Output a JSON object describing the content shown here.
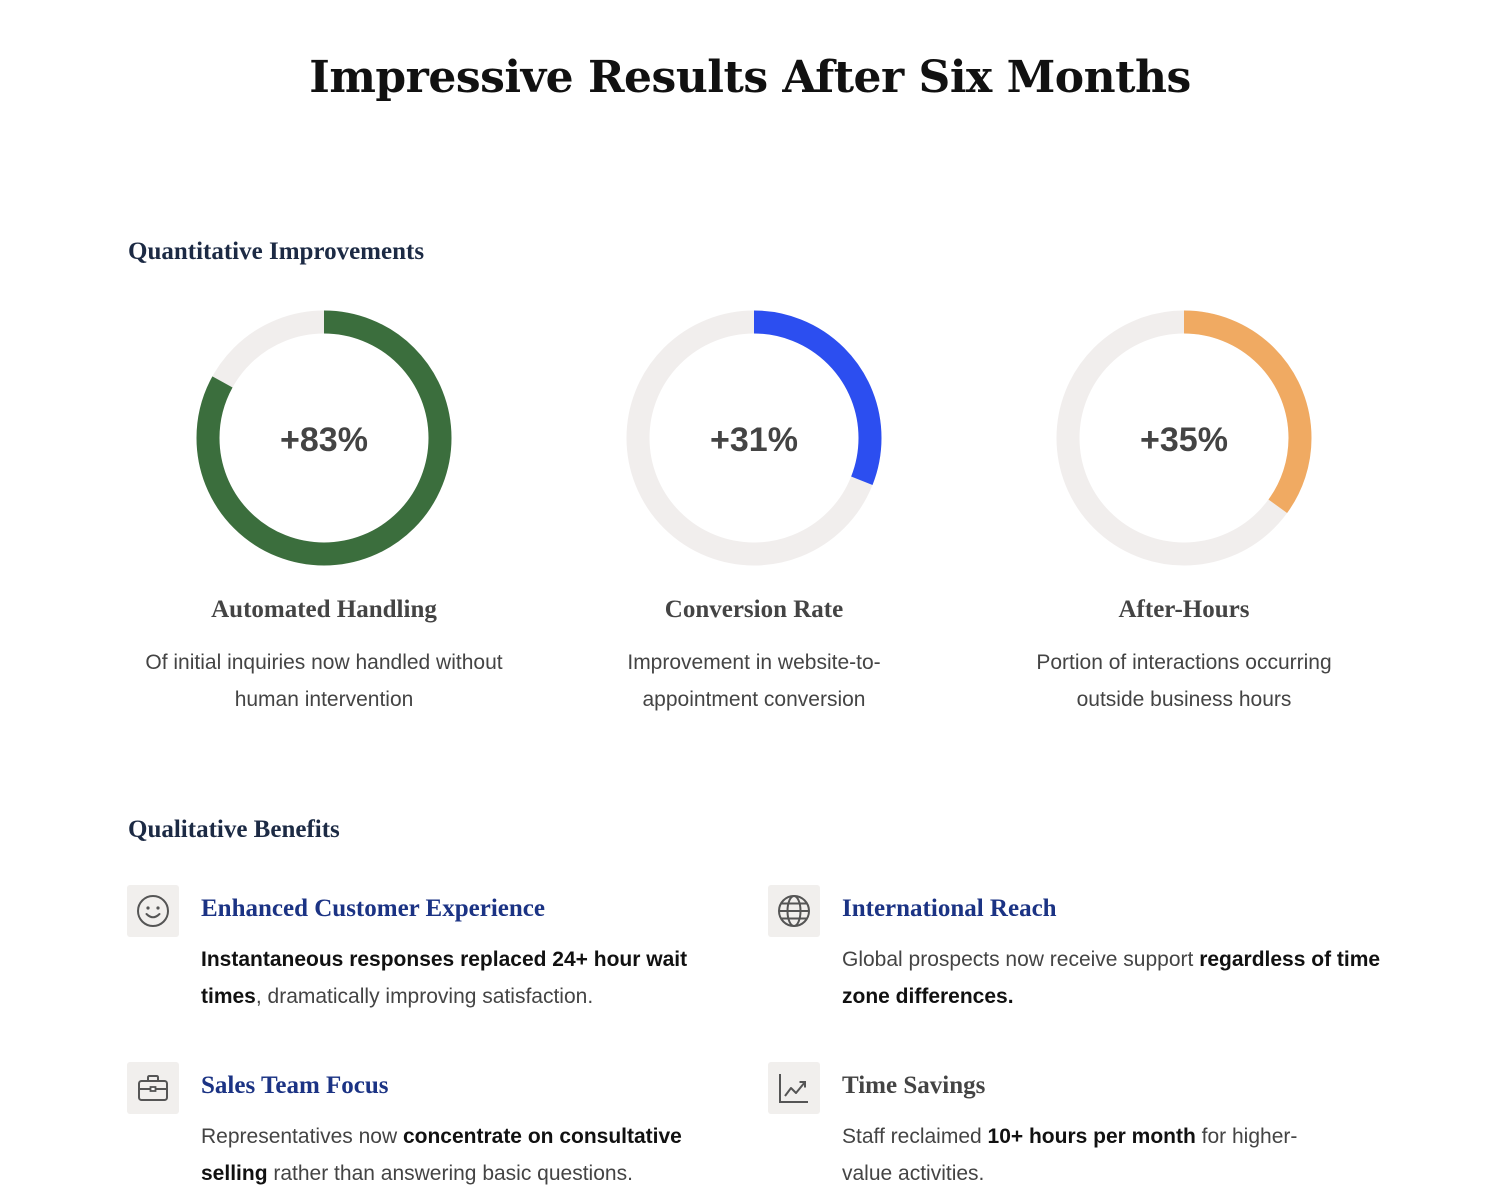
{
  "title": "Impressive Results After Six Months",
  "quantitative": {
    "heading": "Quantitative Improvements",
    "track_color": "#f1eeed"
  },
  "chart_data": {
    "type": "donut",
    "items": [
      {
        "value_label": "+83%",
        "value": 83,
        "title": "Automated Handling",
        "description": "Of initial inquiries now handled without human intervention",
        "color": "#3b6e3d"
      },
      {
        "value_label": "+31%",
        "value": 31,
        "title": "Conversion Rate",
        "description": "Improvement in website-to-appointment conversion",
        "color": "#2c4ef0"
      },
      {
        "value_label": "+35%",
        "value": 35,
        "title": "After-Hours",
        "description": "Portion of interactions occurring outside business hours",
        "color": "#f0aa62"
      }
    ]
  },
  "qualitative": {
    "heading": "Qualitative Benefits",
    "items": [
      {
        "icon": "smile-icon",
        "title": "Enhanced Customer Experience",
        "desc_bold": "Instantaneous responses replaced 24+ hour wait times",
        "desc_end": ", dramatically improving satisfaction."
      },
      {
        "icon": "globe-icon",
        "title": "International Reach",
        "desc_start": "Global prospects now receive support ",
        "desc_bold": "regardless of time zone differences."
      },
      {
        "icon": "briefcase-icon",
        "title": "Sales Team Focus",
        "desc_start": "Representatives now ",
        "desc_bold": "concentrate on consultative selling",
        "desc_end": " rather than answering basic questions."
      },
      {
        "icon": "trending-up-icon",
        "title": "Time Savings",
        "desc_start": "Staff reclaimed ",
        "desc_bold": "10+ hours per month",
        "desc_end": " for higher-value activities."
      }
    ]
  }
}
